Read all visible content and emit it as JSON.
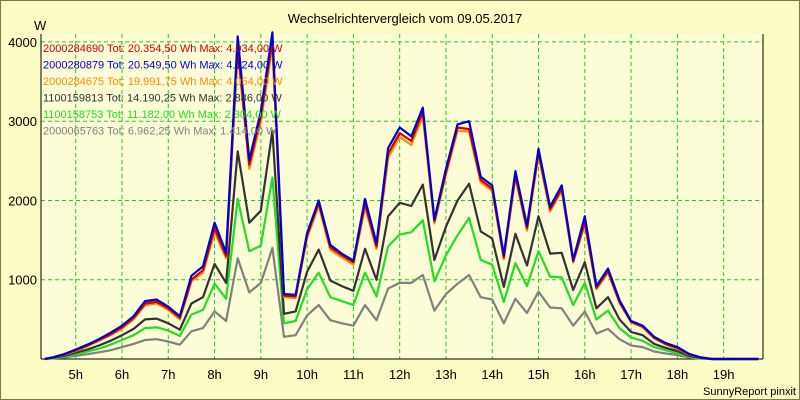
{
  "chart_data": {
    "type": "line",
    "title": "Wechselrichtervergleich vom 09.05.2017",
    "ylabel": "W",
    "xlabel": "",
    "footer": "SunnyReport pinxit",
    "ylim": [
      0,
      4100
    ],
    "yticks": [
      1000,
      2000,
      3000,
      4000
    ],
    "xlim": [
      4.25,
      19.85
    ],
    "xticks": [
      {
        "v": 5,
        "label": "5h"
      },
      {
        "v": 6,
        "label": "6h"
      },
      {
        "v": 7,
        "label": "7h"
      },
      {
        "v": 8,
        "label": "8h"
      },
      {
        "v": 9,
        "label": "9h"
      },
      {
        "v": 10,
        "label": "10h"
      },
      {
        "v": 11,
        "label": "11h"
      },
      {
        "v": 12,
        "label": "12h"
      },
      {
        "v": 13,
        "label": "13h"
      },
      {
        "v": 14,
        "label": "14h"
      },
      {
        "v": 15,
        "label": "15h"
      },
      {
        "v": 16,
        "label": "16h"
      },
      {
        "v": 17,
        "label": "17h"
      },
      {
        "v": 18,
        "label": "18h"
      },
      {
        "v": 19,
        "label": "19h"
      }
    ],
    "grid": true,
    "legend_position": "top-left",
    "x": [
      4.33,
      4.5,
      4.75,
      5.0,
      5.25,
      5.5,
      5.75,
      6.0,
      6.25,
      6.5,
      6.75,
      7.0,
      7.25,
      7.5,
      7.75,
      8.0,
      8.25,
      8.5,
      8.75,
      9.0,
      9.25,
      9.5,
      9.75,
      10.0,
      10.25,
      10.5,
      10.75,
      11.0,
      11.25,
      11.5,
      11.75,
      12.0,
      12.25,
      12.5,
      12.75,
      13.0,
      13.25,
      13.5,
      13.75,
      14.0,
      14.25,
      14.5,
      14.75,
      15.0,
      15.25,
      15.5,
      15.75,
      16.0,
      16.25,
      16.5,
      16.75,
      17.0,
      17.25,
      17.5,
      17.75,
      18.0,
      18.25,
      18.5,
      18.75,
      19.0,
      19.25,
      19.5,
      19.75
    ],
    "series": [
      {
        "name": "2000284690",
        "label": "2000284690 Tot: 20.354,50 Wh Max: 4.034,00 W",
        "color": "#d40000",
        "values": [
          0,
          20,
          60,
          110,
          170,
          240,
          310,
          400,
          520,
          700,
          720,
          640,
          520,
          1000,
          1120,
          1650,
          1300,
          3950,
          2450,
          3060,
          4020,
          800,
          790,
          1560,
          1970,
          1410,
          1310,
          1220,
          1960,
          1420,
          2590,
          2850,
          2750,
          3120,
          1740,
          2360,
          2920,
          2900,
          2260,
          2150,
          1280,
          2320,
          1650,
          2610,
          1890,
          2150,
          1230,
          1730,
          900,
          1110,
          720,
          470,
          410,
          270,
          190,
          140,
          60,
          20,
          0,
          0,
          0,
          0,
          0
        ]
      },
      {
        "name": "2000280879",
        "label": "2000280879 Tot: 20.549,50 Wh Max: 4.124,00 W",
        "color": "#0000d0",
        "values": [
          0,
          20,
          60,
          120,
          180,
          250,
          330,
          420,
          540,
          730,
          750,
          660,
          540,
          1050,
          1170,
          1720,
          1340,
          4070,
          2510,
          3120,
          4120,
          820,
          810,
          1590,
          2000,
          1440,
          1330,
          1240,
          2020,
          1460,
          2660,
          2920,
          2810,
          3170,
          1760,
          2400,
          2960,
          3000,
          2300,
          2190,
          1310,
          2370,
          1680,
          2650,
          1920,
          2190,
          1250,
          1800,
          920,
          1140,
          740,
          480,
          420,
          280,
          200,
          150,
          65,
          20,
          0,
          0,
          0,
          0,
          0
        ]
      },
      {
        "name": "2000284675",
        "label": "2000284675 Tot: 19.991,75 Wh Max: 4.054,00 W",
        "color": "#ff8c00",
        "values": [
          0,
          20,
          55,
          100,
          160,
          230,
          300,
          380,
          500,
          680,
          700,
          620,
          500,
          980,
          1090,
          1600,
          1270,
          3880,
          2400,
          2990,
          3950,
          780,
          770,
          1530,
          1930,
          1380,
          1280,
          1190,
          1920,
          1390,
          2540,
          2800,
          2700,
          3060,
          1710,
          2330,
          2880,
          2870,
          2230,
          2120,
          1260,
          2290,
          1620,
          2570,
          1860,
          2120,
          1220,
          1700,
          880,
          1090,
          710,
          460,
          400,
          260,
          180,
          130,
          55,
          20,
          0,
          0,
          0,
          0,
          0
        ]
      },
      {
        "name": "1100159813",
        "label": "1100159813 Tot: 14.190,25 Wh Max: 2.886,00 W",
        "color": "#333333",
        "values": [
          0,
          15,
          40,
          80,
          120,
          170,
          230,
          300,
          380,
          500,
          510,
          450,
          370,
          700,
          780,
          1200,
          960,
          2620,
          1720,
          1870,
          2880,
          570,
          600,
          1100,
          1380,
          990,
          920,
          860,
          1390,
          1000,
          1800,
          1970,
          1930,
          2200,
          1250,
          1670,
          2000,
          2210,
          1610,
          1520,
          910,
          1580,
          1180,
          1800,
          1330,
          1340,
          870,
          1220,
          640,
          780,
          500,
          340,
          300,
          190,
          140,
          100,
          40,
          15,
          0,
          0,
          0,
          0,
          0
        ]
      },
      {
        "name": "1100158753",
        "label": "1100158753 Tot: 11.182,00 Wh Max: 2.304,00 W",
        "color": "#22dd22",
        "values": [
          0,
          12,
          30,
          60,
          95,
          130,
          180,
          240,
          300,
          390,
          400,
          360,
          290,
          560,
          620,
          950,
          760,
          2020,
          1360,
          1430,
          2290,
          450,
          480,
          880,
          1090,
          780,
          730,
          680,
          1090,
          790,
          1420,
          1570,
          1600,
          1750,
          980,
          1310,
          1560,
          1780,
          1250,
          1190,
          720,
          1210,
          920,
          1360,
          1040,
          1030,
          680,
          960,
          500,
          610,
          390,
          270,
          230,
          150,
          110,
          75,
          30,
          10,
          0,
          0,
          0,
          0,
          0
        ]
      },
      {
        "name": "2000065763",
        "label": "2000065763 Tot: 6.962,25 Wh Max: 1.414,00 W",
        "color": "#808080",
        "values": [
          0,
          8,
          20,
          40,
          60,
          85,
          110,
          150,
          190,
          240,
          250,
          220,
          180,
          350,
          390,
          600,
          480,
          1270,
          840,
          960,
          1400,
          280,
          300,
          550,
          680,
          490,
          450,
          420,
          680,
          490,
          890,
          960,
          960,
          1060,
          610,
          820,
          950,
          1060,
          780,
          750,
          450,
          760,
          580,
          850,
          650,
          640,
          420,
          600,
          320,
          380,
          250,
          170,
          150,
          95,
          70,
          50,
          20,
          5,
          0,
          0,
          0,
          0,
          0
        ]
      }
    ]
  }
}
